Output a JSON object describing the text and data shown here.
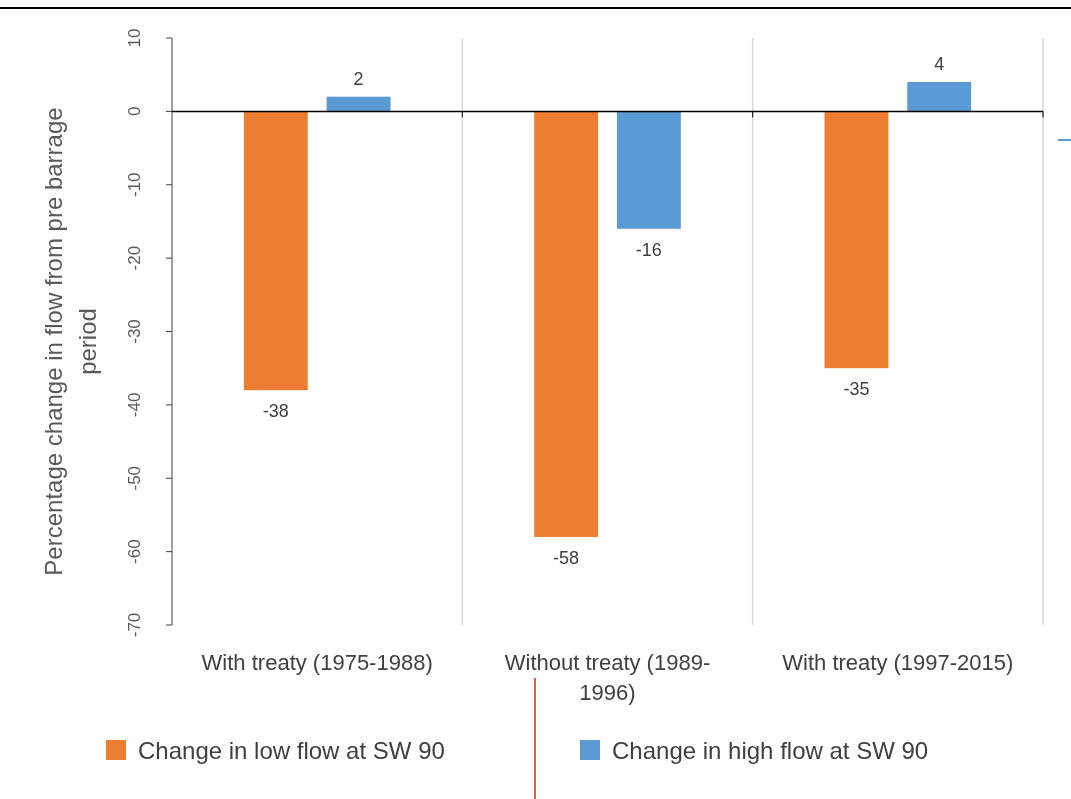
{
  "chart_data": {
    "type": "bar",
    "ylabel": "Percentage change in flow from pre barrage period",
    "categories": [
      "With treaty (1975-1988)",
      "Without treaty (1989-1996)",
      "With treaty (1997-2015)"
    ],
    "series": [
      {
        "name": "Change in low flow at SW 90",
        "color": "#ed7d31",
        "values": [
          -38,
          -58,
          -35
        ]
      },
      {
        "name": "Change in high flow at SW 90",
        "color": "#5b9bd5",
        "values": [
          2,
          -16,
          4
        ]
      }
    ],
    "ylim": [
      -70,
      10
    ],
    "yticks": [
      -70,
      -60,
      -50,
      -40,
      -30,
      -20,
      -10,
      0,
      10
    ],
    "grid": "x",
    "legend": "bottom",
    "data_labels": true
  }
}
